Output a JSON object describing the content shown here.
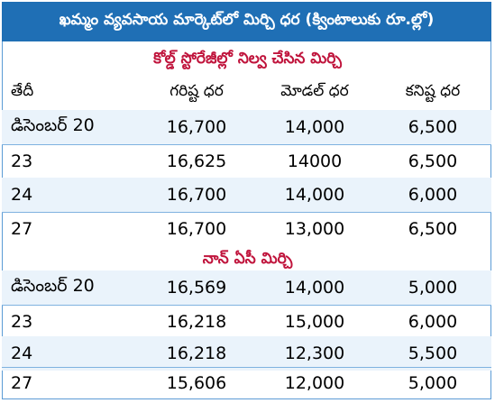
{
  "title": "ఖమ్మం వ్యవసాయ మార్కెట్‌లో మిర్చి ధర (క్వింటాలుకు రూ.ల్లో)",
  "headers": [
    "తేదీ",
    "గరిష్ట ధర",
    "మోడల్ ధర",
    "కనిష్ట ధర"
  ],
  "sections": [
    {
      "title": "కోల్డ్ స్టోరేజీల్లో నిల్వ చేసిన మిర్చి",
      "rows": [
        [
          "డిసెంబర్ 20",
          "16,700",
          "14,000",
          "6,500"
        ],
        [
          "23",
          "16,625",
          "14000",
          "6,500"
        ],
        [
          "24",
          "16,700",
          "14,000",
          "6,000"
        ],
        [
          "27",
          "16,700",
          "13,000",
          "6,500"
        ]
      ]
    },
    {
      "title": "నాన్ ఏసీ మిర్చి",
      "rows": [
        [
          "డిసెంబర్ 20",
          "16,569",
          "14,000",
          "5,000"
        ],
        [
          "23",
          "16,218",
          "15,000",
          "6,000"
        ],
        [
          "24",
          "16,218",
          "12,300",
          "5,500"
        ],
        [
          "27",
          "15,606",
          "12,000",
          "5,000"
        ]
      ]
    }
  ]
}
